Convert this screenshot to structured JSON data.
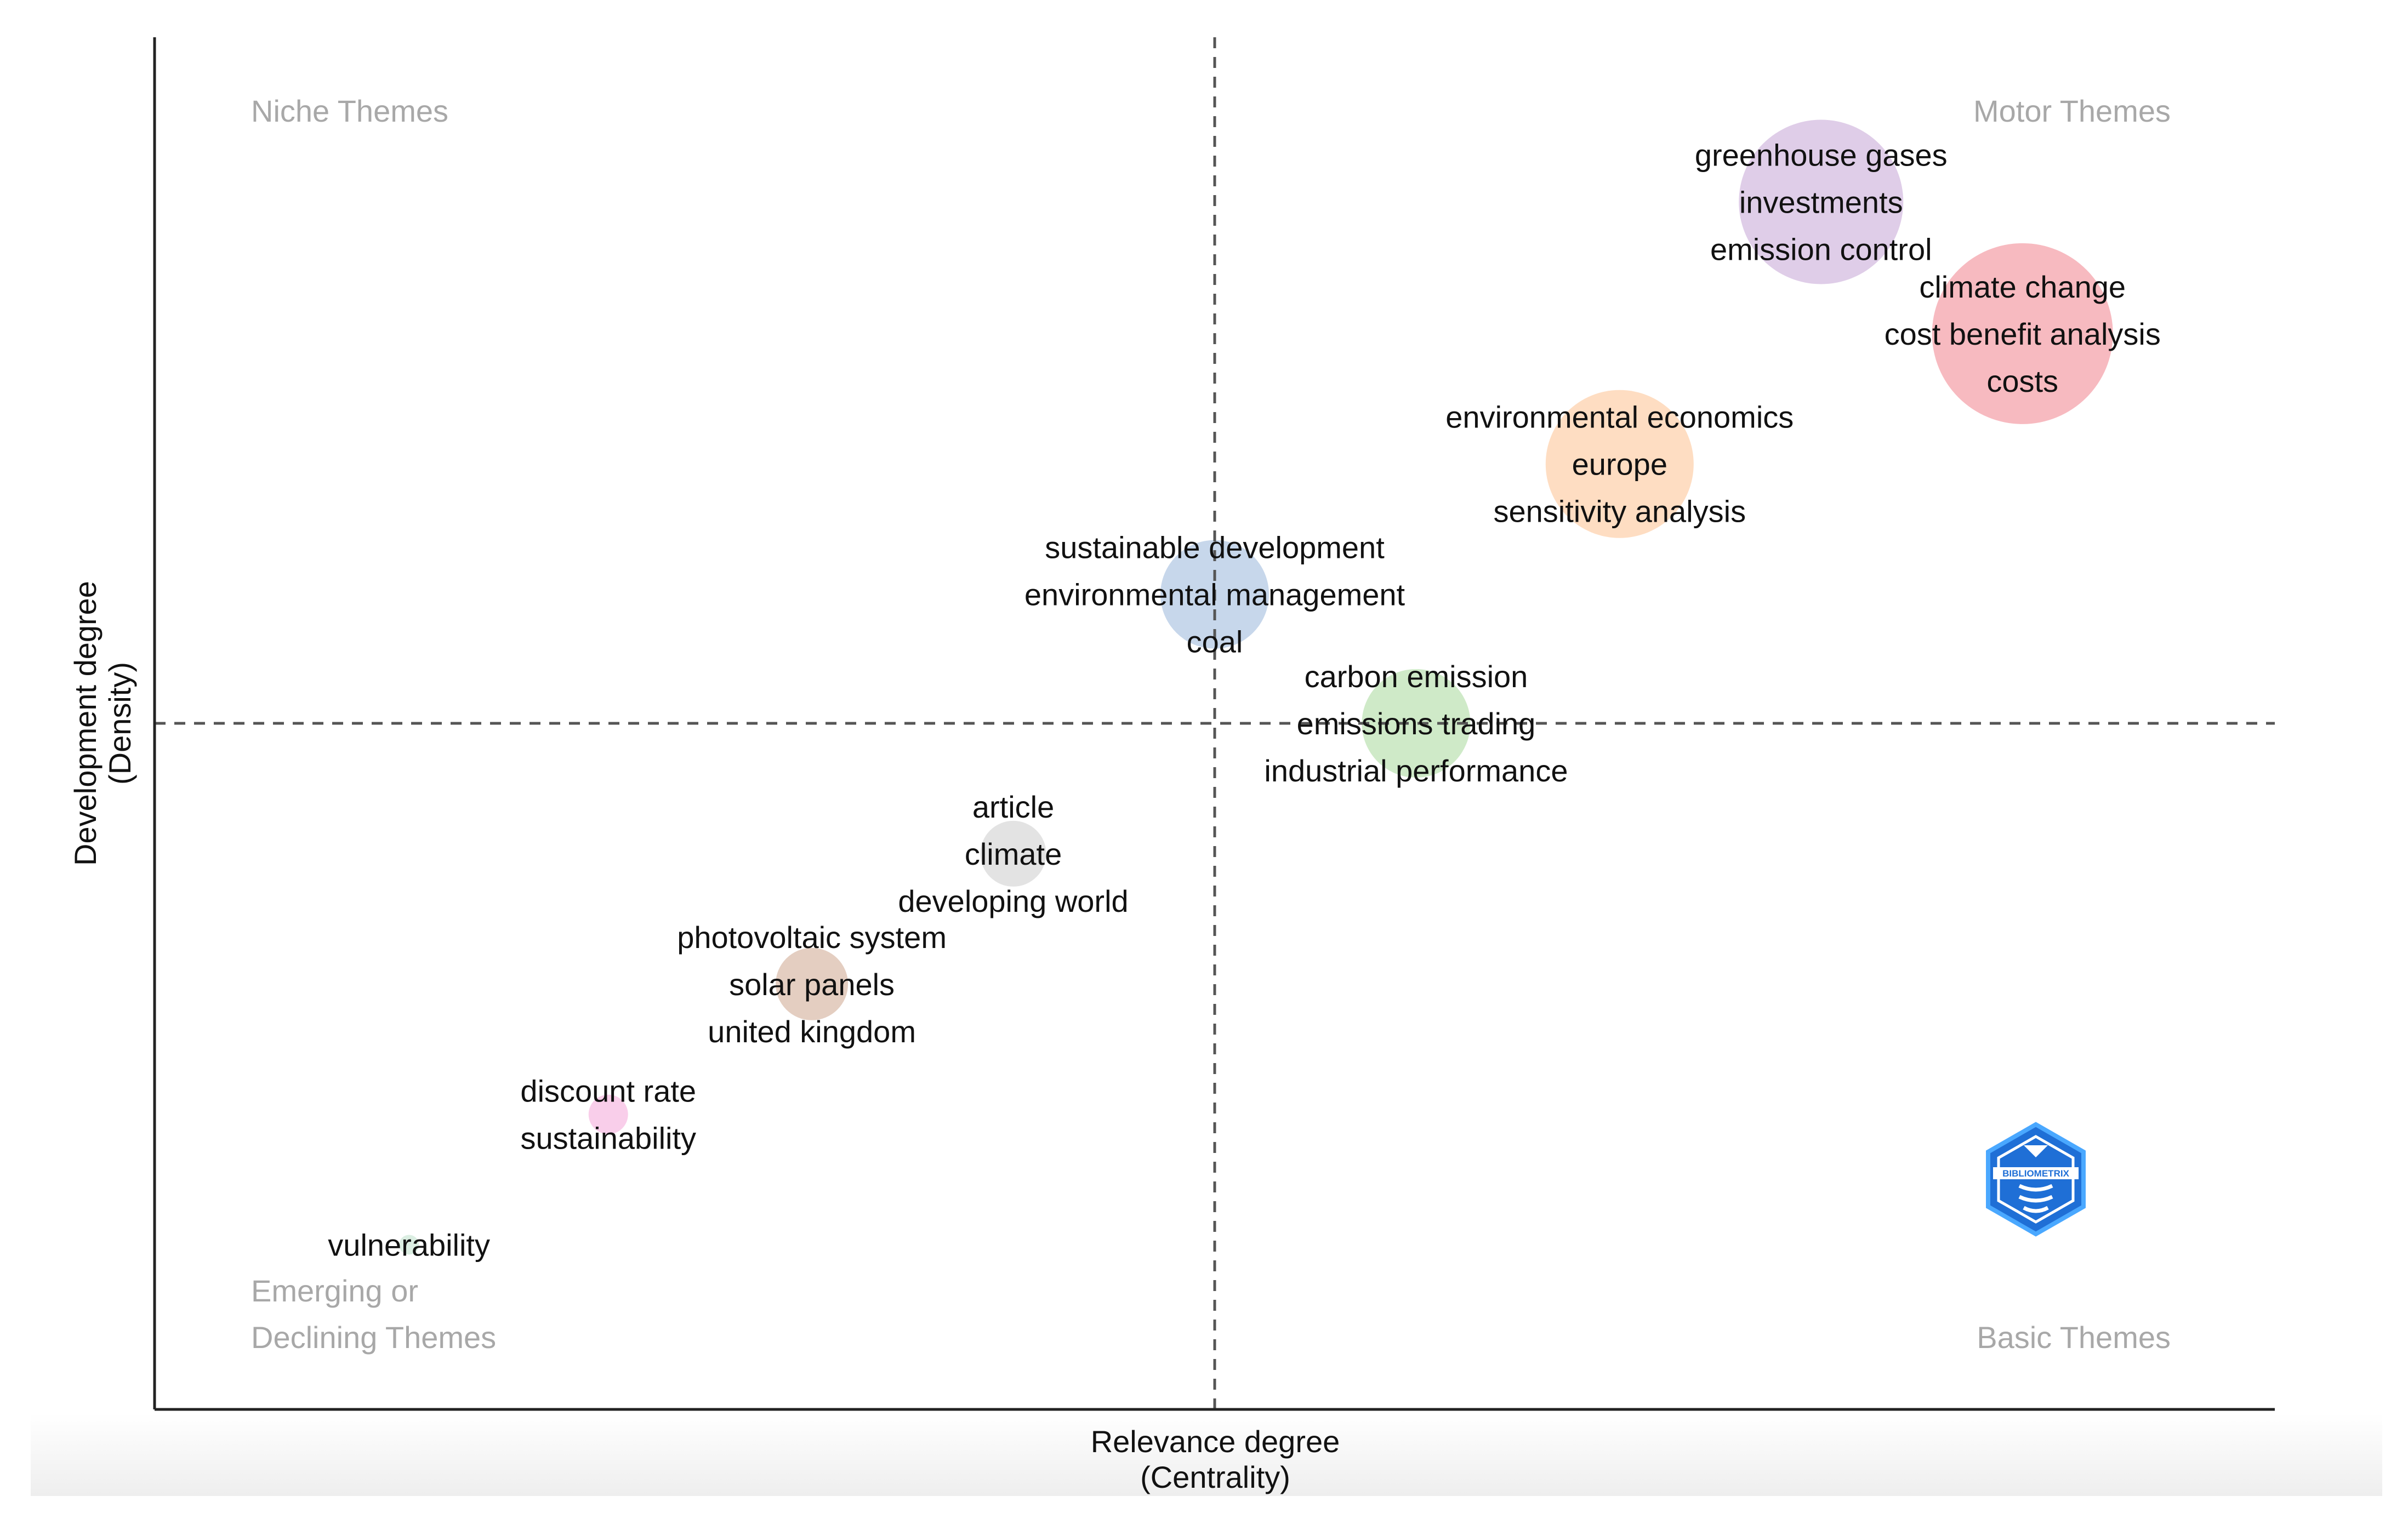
{
  "chart_data": {
    "type": "scatter",
    "subtype": "thematic-map",
    "xlabel": "Relevance degree",
    "xlabel_sub": "(Centrality)",
    "ylabel": "Development degree",
    "ylabel_sub": "(Density)",
    "xlim": [
      0,
      100
    ],
    "ylim": [
      0,
      100
    ],
    "x_median": 50,
    "y_median": 50,
    "grid": false,
    "quadrants": {
      "top_left": [
        "Niche Themes"
      ],
      "top_right": [
        "Motor Themes"
      ],
      "bottom_left": [
        "Emerging or",
        "Declining Themes"
      ],
      "bottom_right": [
        "Basic Themes"
      ]
    },
    "clusters": [
      {
        "name": "greenhouse gases",
        "x": 78.6,
        "y": 88.0,
        "size": 5.0,
        "color": "#d4bce0",
        "labels": [
          "greenhouse gases",
          "investments",
          "emission control"
        ]
      },
      {
        "name": "climate change",
        "x": 88.1,
        "y": 78.4,
        "size": 5.5,
        "color": "#f4a3ab",
        "labels": [
          "climate change",
          "cost benefit analysis",
          "costs"
        ]
      },
      {
        "name": "environmental economics",
        "x": 69.1,
        "y": 68.9,
        "size": 4.5,
        "color": "#fdd2ad",
        "labels": [
          "environmental economics",
          "europe",
          "sensitivity analysis"
        ]
      },
      {
        "name": "sustainable development",
        "x": 50.0,
        "y": 59.4,
        "size": 3.3,
        "color": "#b4c9e4",
        "labels": [
          "sustainable development",
          "environmental management",
          "coal"
        ]
      },
      {
        "name": "carbon emission",
        "x": 59.5,
        "y": 50.0,
        "size": 3.3,
        "color": "#bfe3b5",
        "labels": [
          "carbon emission",
          "emissions trading",
          "industrial performance"
        ]
      },
      {
        "name": "article",
        "x": 40.5,
        "y": 40.5,
        "size": 2.0,
        "color": "#d9d9d9",
        "labels": [
          "article",
          "climate",
          "developing world"
        ]
      },
      {
        "name": "photovoltaic system",
        "x": 31.0,
        "y": 31.0,
        "size": 2.2,
        "color": "#dbbdac",
        "labels": [
          "photovoltaic system",
          "solar panels",
          "united kingdom"
        ]
      },
      {
        "name": "discount rate",
        "x": 21.4,
        "y": 21.5,
        "size": 1.2,
        "color": "#f7bde3",
        "labels": [
          "discount rate",
          "sustainability"
        ]
      },
      {
        "name": "vulnerability",
        "x": 12.0,
        "y": 12.0,
        "size": 0.6,
        "color": "#cfe8d8",
        "labels": [
          "vulnerability"
        ]
      }
    ]
  },
  "logo": {
    "name": "BIBLIOMETRIX"
  }
}
